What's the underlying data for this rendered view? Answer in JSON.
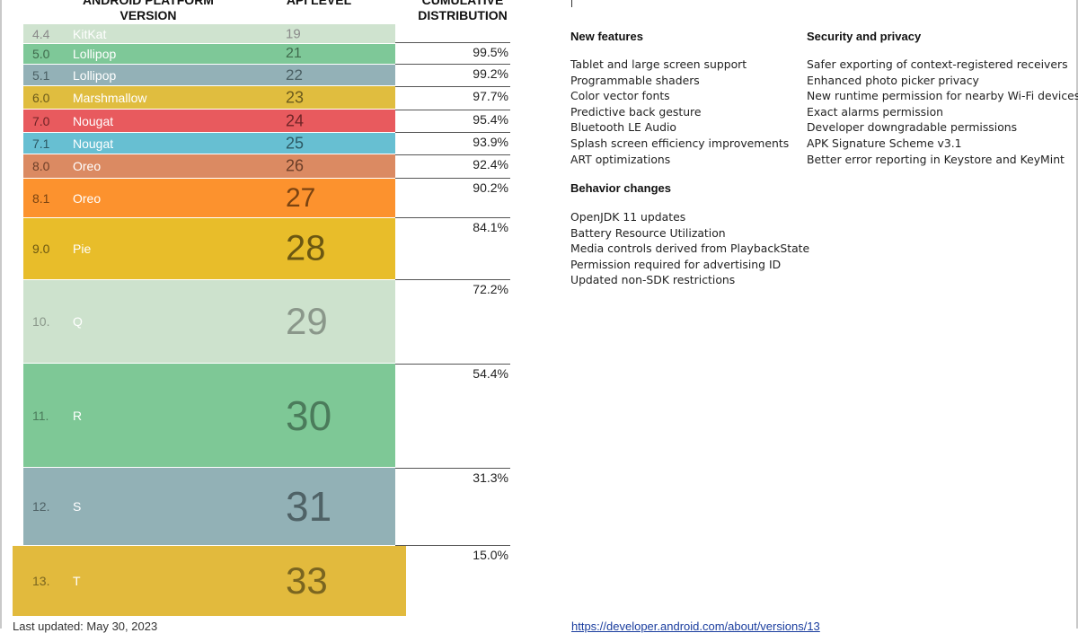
{
  "headers": {
    "version": [
      "ANDROID PLATFORM",
      "VERSION"
    ],
    "api": [
      "API LEVEL"
    ],
    "cumulative": [
      "CUMULATIVE",
      "DISTRIBUTION"
    ]
  },
  "versions": [
    {
      "version": "4.4",
      "name": "KitKat",
      "api": "19",
      "color": "#cfe3cf",
      "text_color": "#ffffff",
      "num_color": "#8a8a8a"
    },
    {
      "version": "5.0",
      "name": "Lollipop",
      "api": "21",
      "color": "#7ec898",
      "text_color": "#ffffff",
      "num_color": "#3f6a4c"
    },
    {
      "version": "5.1",
      "name": "Lollipop",
      "api": "22",
      "color": "#93b1b7",
      "text_color": "#ffffff",
      "num_color": "#4a5f63"
    },
    {
      "version": "6.0",
      "name": "Marshmallow",
      "api": "23",
      "color": "#e0bd3f",
      "text_color": "#ffffff",
      "num_color": "#6b5a1c"
    },
    {
      "version": "7.0",
      "name": "Nougat",
      "api": "24",
      "color": "#e85a5e",
      "text_color": "#ffffff",
      "num_color": "#6e2426"
    },
    {
      "version": "7.1",
      "name": "Nougat",
      "api": "25",
      "color": "#67bfd2",
      "text_color": "#ffffff",
      "num_color": "#2d5964"
    },
    {
      "version": "8.0",
      "name": "Oreo",
      "api": "26",
      "color": "#db8a62",
      "text_color": "#ffffff",
      "num_color": "#6b3e28"
    },
    {
      "version": "8.1",
      "name": "Oreo",
      "api": "27",
      "color": "#fc922e",
      "text_color": "#ffffff",
      "num_color": "#7a4311"
    },
    {
      "version": "9.0",
      "name": "Pie",
      "api": "28",
      "color": "#e8bd2a",
      "text_color": "#ffffff",
      "num_color": "#6b5712"
    },
    {
      "version": "10.",
      "name": "Q",
      "api": "29",
      "color": "#cde2cd",
      "text_color": "#ffffff",
      "num_color": "#8a978a"
    },
    {
      "version": "11.",
      "name": "R",
      "api": "30",
      "color": "#7ec896",
      "text_color": "#ffffff",
      "num_color": "#4b7b5b"
    },
    {
      "version": "12.",
      "name": "S",
      "api": "31",
      "color": "#92b1b6",
      "text_color": "#ffffff",
      "num_color": "#4f6266"
    },
    {
      "version": "13.",
      "name": "T",
      "api": "33",
      "color": "#e2ba3d",
      "text_color": "#ffffff",
      "num_color": "#7a6520"
    }
  ],
  "cumulative": [
    "99.5%",
    "99.2%",
    "97.7%",
    "95.4%",
    "93.9%",
    "92.4%",
    "90.2%",
    "84.1%",
    "72.2%",
    "54.4%",
    "31.3%",
    "15.0%"
  ],
  "new_features": {
    "title": "New features",
    "items": [
      "Tablet and large screen support",
      "Programmable shaders",
      "Color vector fonts",
      "Predictive back gesture",
      "Bluetooth LE Audio",
      "Splash screen efficiency improvements",
      "ART optimizations"
    ]
  },
  "security": {
    "title": "Security and privacy",
    "items": [
      "Safer exporting of context-registered receivers",
      "Enhanced photo picker privacy",
      "New runtime permission for nearby Wi-Fi devices",
      "Exact alarms permission",
      "Developer downgradable permissions",
      "APK Signature Scheme v3.1",
      "Better error reporting in Keystore and KeyMint"
    ]
  },
  "behavior": {
    "title": "Behavior changes",
    "items": [
      "OpenJDK 11 updates",
      "Battery Resource Utilization",
      "Media controls derived from PlaybackState",
      "Permission required for advertising ID",
      "Updated non-SDK restrictions"
    ]
  },
  "footer": {
    "updated": "Last updated: May 30, 2023",
    "link": "https://developer.android.com/about/versions/13"
  }
}
